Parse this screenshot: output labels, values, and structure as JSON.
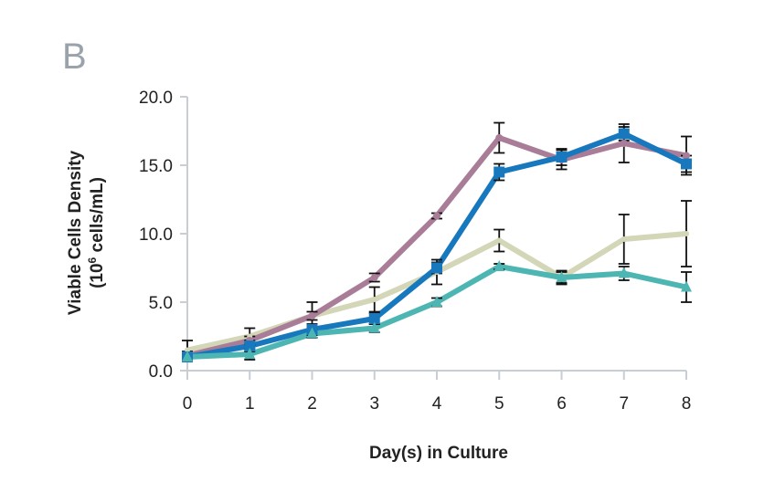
{
  "panel_label": "B",
  "chart_data": {
    "type": "line",
    "title": "",
    "xlabel": "Day(s) in Culture",
    "ylabel_line1": "Viable Cells Density",
    "ylabel_line2_prefix": "(10",
    "ylabel_line2_sup": "6",
    "ylabel_line2_suffix": " cells/mL)",
    "x": [
      0,
      1,
      2,
      3,
      4,
      5,
      6,
      7,
      8
    ],
    "xlim": [
      0,
      8
    ],
    "ylim": [
      0,
      20
    ],
    "x_ticks": [
      "0",
      "1",
      "2",
      "3",
      "4",
      "5",
      "6",
      "7",
      "8"
    ],
    "y_ticks": [
      {
        "value": 0,
        "label": "0.0"
      },
      {
        "value": 5,
        "label": "5.0"
      },
      {
        "value": 10,
        "label": "10.0"
      },
      {
        "value": 15,
        "label": "15.0"
      },
      {
        "value": 20,
        "label": "20.0"
      }
    ],
    "series": [
      {
        "name": "tan",
        "color": "#d4d6b8",
        "marker": "x",
        "values": [
          1.5,
          2.5,
          4.0,
          5.2,
          7.2,
          9.5,
          6.8,
          9.6,
          10.0
        ],
        "errors": [
          0.7,
          0.6,
          1.0,
          0.9,
          0.9,
          0.8,
          0.5,
          1.8,
          2.4
        ]
      },
      {
        "name": "mauve",
        "color": "#a97d98",
        "marker": "circle",
        "values": [
          1.1,
          2.2,
          4.0,
          6.8,
          11.3,
          17.0,
          15.4,
          16.6,
          15.7
        ],
        "errors": [
          0.3,
          0.3,
          0.3,
          0.3,
          0.2,
          1.1,
          0.7,
          1.4,
          1.4
        ]
      },
      {
        "name": "blue",
        "color": "#1878bd",
        "marker": "square",
        "values": [
          1.0,
          1.8,
          3.0,
          3.8,
          7.5,
          14.5,
          15.6,
          17.3,
          15.1
        ],
        "errors": [
          0.3,
          0.4,
          0.4,
          0.4,
          0.4,
          0.6,
          0.6,
          0.5,
          0.6
        ]
      },
      {
        "name": "teal",
        "color": "#4db6b3",
        "marker": "triangle",
        "values": [
          1.0,
          1.2,
          2.7,
          3.1,
          5.0,
          7.6,
          6.8,
          7.1,
          6.1
        ],
        "errors": [
          0.3,
          0.4,
          0.3,
          0.3,
          0.3,
          0.2,
          0.4,
          0.5,
          1.1
        ]
      }
    ]
  }
}
